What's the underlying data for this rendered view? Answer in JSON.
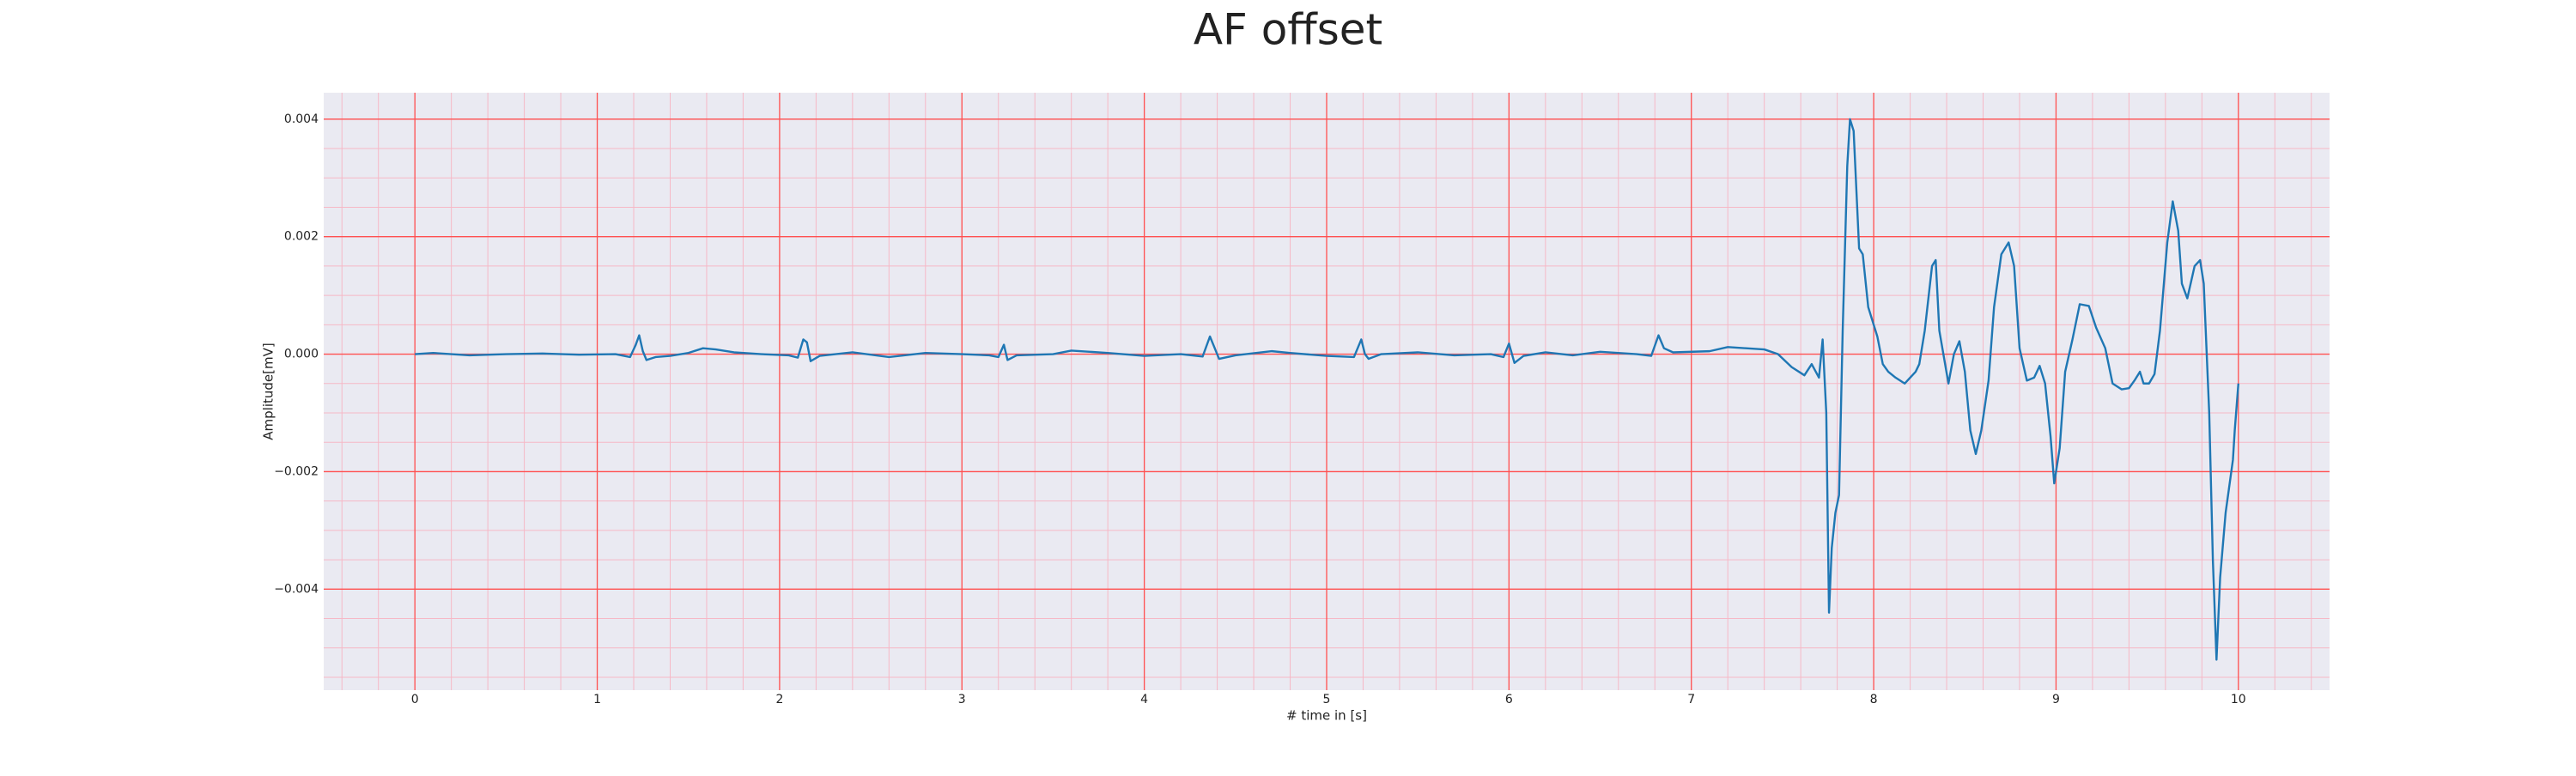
{
  "chart_data": {
    "type": "line",
    "title": "AF offset",
    "xlabel": "# time in [s]",
    "ylabel": "Amplitude[mV]",
    "color": "#1f77b4",
    "background": "#eaeaf2",
    "grid": true,
    "grid_color": "#ff5050",
    "minor_grid": {
      "x": 0.2,
      "y": 0.0005,
      "color": "#f6b8c6"
    },
    "xlim": [
      -0.5,
      10.5
    ],
    "ylim": [
      -0.00572,
      0.00445
    ],
    "xticks": [
      0,
      1,
      2,
      3,
      4,
      5,
      6,
      7,
      8,
      9,
      10
    ],
    "yticks": [
      0.004,
      0.002,
      {
        "value": 0,
        "label": "0.000"
      },
      {
        "value": -0.002,
        "label": "−0.002"
      },
      {
        "value": -0.004,
        "label": "−0.004"
      }
    ],
    "x": [
      0,
      0.1,
      0.3,
      0.5,
      0.7,
      0.9,
      1.1,
      1.18,
      1.21,
      1.23,
      1.25,
      1.27,
      1.32,
      1.4,
      1.5,
      1.58,
      1.65,
      1.75,
      1.9,
      2.05,
      2.1,
      2.13,
      2.15,
      2.17,
      2.22,
      2.4,
      2.6,
      2.8,
      3.0,
      3.15,
      3.2,
      3.23,
      3.25,
      3.3,
      3.5,
      3.6,
      3.8,
      4.0,
      4.2,
      4.32,
      4.36,
      4.38,
      4.41,
      4.5,
      4.7,
      4.8,
      5.0,
      5.15,
      5.19,
      5.21,
      5.23,
      5.3,
      5.5,
      5.7,
      5.9,
      5.97,
      6.0,
      6.03,
      6.08,
      6.2,
      6.35,
      6.5,
      6.7,
      6.78,
      6.82,
      6.85,
      6.9,
      7.1,
      7.2,
      7.3,
      7.4,
      7.475,
      7.55,
      7.62,
      7.66,
      7.7,
      7.72,
      7.74,
      7.755,
      7.77,
      7.79,
      7.81,
      7.83,
      7.855,
      7.87,
      7.89,
      7.92,
      7.94,
      7.97,
      8.0,
      8.02,
      8.05,
      8.08,
      8.12,
      8.17,
      8.23,
      8.25,
      8.28,
      8.32,
      8.34,
      8.36,
      8.41,
      8.44,
      8.47,
      8.5,
      8.53,
      8.56,
      8.59,
      8.63,
      8.66,
      8.7,
      8.74,
      8.77,
      8.8,
      8.84,
      8.88,
      8.91,
      8.94,
      8.97,
      8.99,
      9.02,
      9.05,
      9.09,
      9.13,
      9.18,
      9.22,
      9.27,
      9.31,
      9.36,
      9.4,
      9.43,
      9.46,
      9.48,
      9.51,
      9.54,
      9.57,
      9.61,
      9.64,
      9.67,
      9.69,
      9.72,
      9.76,
      9.79,
      9.81,
      9.84,
      9.86,
      9.88,
      9.9,
      9.93,
      9.97,
      9.98,
      10.0
    ],
    "values": [
      0,
      2e-05,
      -2e-05,
      0,
      1e-05,
      -1e-05,
      0,
      -5e-05,
      0.00015,
      0.00032,
      5e-05,
      -0.0001,
      -5e-05,
      -3e-05,
      2e-05,
      0.0001,
      8e-05,
      3e-05,
      0,
      -2e-05,
      -6e-05,
      0.00025,
      0.0002,
      -0.00012,
      -3e-05,
      3e-05,
      -5e-05,
      2e-05,
      0,
      -2e-05,
      -5e-05,
      0.00016,
      -0.0001,
      -2e-05,
      0,
      6e-05,
      2e-05,
      -3e-05,
      0,
      -4e-05,
      0.0003,
      0.00015,
      -8e-05,
      -2e-05,
      5e-05,
      2e-05,
      -3e-05,
      -5e-05,
      0.00025,
      0,
      -8e-05,
      0,
      3e-05,
      -2e-05,
      0,
      -5e-05,
      0.00018,
      -0.00015,
      -3e-05,
      3e-05,
      -2e-05,
      4e-05,
      0,
      -3e-05,
      0.00032,
      0.0001,
      3e-05,
      5e-05,
      0.00012,
      0.0001,
      8e-05,
      0,
      -0.00022,
      -0.00036,
      -0.00017,
      -0.0004,
      0.00025,
      -0.001,
      -0.0044,
      -0.0033,
      -0.0027,
      -0.0024,
      0.0004,
      0.0032,
      0.004,
      0.0038,
      0.0018,
      0.0017,
      0.0008,
      0.0005,
      0.0003,
      -0.00017,
      -0.0003,
      -0.0004,
      -0.0005,
      -0.0003,
      -0.00017,
      0.0004,
      0.0015,
      0.0016,
      0.0004,
      -0.0005,
      0,
      0.00022,
      -0.0003,
      -0.0013,
      -0.0017,
      -0.0013,
      -0.00045,
      0.0008,
      0.0017,
      0.0019,
      0.0015,
      0.0001,
      -0.00045,
      -0.0004,
      -0.0002,
      -0.0005,
      -0.0014,
      -0.0022,
      -0.0016,
      -0.0003,
      0.00025,
      0.00085,
      0.00082,
      0.00045,
      0.0001,
      -0.0005,
      -0.0006,
      -0.00058,
      -0.00045,
      -0.0003,
      -0.0005,
      -0.0005,
      -0.00034,
      0.0004,
      0.0019,
      0.0026,
      0.0021,
      0.0012,
      0.00095,
      0.0015,
      0.0016,
      0.0012,
      -0.001,
      -0.0035,
      -0.0052,
      -0.0038,
      -0.0027,
      -0.0018,
      -0.0013,
      -0.0005
    ]
  }
}
